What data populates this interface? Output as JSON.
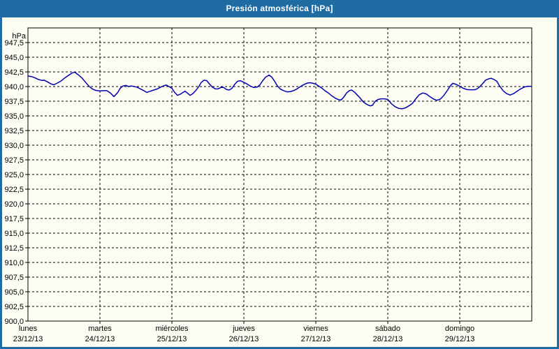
{
  "title": "Presión atmosférica [hPa]",
  "colors": {
    "chrome": "#1e6ca3",
    "title_text": "#ffffff",
    "panel_bg": "#fdfdf4",
    "grid": "#000000",
    "axis_text": "#000000",
    "line": "#0000b4"
  },
  "chart_data": {
    "type": "line",
    "title": "Presión atmosférica [hPa]",
    "ylabel": "hPa",
    "ylim": [
      900,
      950
    ],
    "yticks": {
      "start": 900,
      "end": 947.5,
      "step": 2.5,
      "decimal_separator": ","
    },
    "grid": "dashed",
    "legend": "none",
    "x_range_days": [
      0,
      7
    ],
    "x_axis_days": [
      {
        "name": "lunes",
        "date": "23/12/13"
      },
      {
        "name": "martes",
        "date": "24/12/13"
      },
      {
        "name": "miércoles",
        "date": "25/12/13"
      },
      {
        "name": "jueves",
        "date": "26/12/13"
      },
      {
        "name": "viernes",
        "date": "27/12/13"
      },
      {
        "name": "sábado",
        "date": "28/12/13"
      },
      {
        "name": "domingo",
        "date": "29/12/13"
      }
    ],
    "series": [
      {
        "name": "Presión atmosférica",
        "unit": "hPa",
        "color": "#0000b4",
        "points": [
          [
            0.0,
            941.8
          ],
          [
            0.049,
            941.7
          ],
          [
            0.097,
            941.5
          ],
          [
            0.146,
            941.2
          ],
          [
            0.194,
            941.05
          ],
          [
            0.223,
            941.1
          ],
          [
            0.272,
            940.8
          ],
          [
            0.32,
            940.45
          ],
          [
            0.359,
            940.3
          ],
          [
            0.408,
            940.6
          ],
          [
            0.466,
            941.0
          ],
          [
            0.515,
            941.5
          ],
          [
            0.563,
            941.9
          ],
          [
            0.612,
            942.3
          ],
          [
            0.65,
            942.45
          ],
          [
            0.699,
            942.0
          ],
          [
            0.748,
            941.5
          ],
          [
            0.796,
            940.8
          ],
          [
            0.845,
            940.1
          ],
          [
            0.893,
            939.6
          ],
          [
            0.942,
            939.35
          ],
          [
            1.0,
            939.25
          ],
          [
            1.049,
            939.3
          ],
          [
            1.097,
            939.3
          ],
          [
            1.146,
            938.9
          ],
          [
            1.194,
            938.3
          ],
          [
            1.243,
            938.9
          ],
          [
            1.282,
            939.7
          ],
          [
            1.32,
            940.1
          ],
          [
            1.359,
            940.2
          ],
          [
            1.398,
            940.0
          ],
          [
            1.437,
            940.1
          ],
          [
            1.476,
            940.0
          ],
          [
            1.515,
            939.9
          ],
          [
            1.563,
            939.6
          ],
          [
            1.612,
            939.3
          ],
          [
            1.65,
            939.0
          ],
          [
            1.699,
            939.2
          ],
          [
            1.748,
            939.4
          ],
          [
            1.796,
            939.6
          ],
          [
            1.845,
            939.9
          ],
          [
            1.893,
            940.15
          ],
          [
            1.922,
            940.25
          ],
          [
            1.961,
            940.0
          ],
          [
            2.0,
            939.7
          ],
          [
            2.039,
            939.0
          ],
          [
            2.078,
            938.5
          ],
          [
            2.117,
            938.7
          ],
          [
            2.155,
            939.0
          ],
          [
            2.184,
            939.2
          ],
          [
            2.214,
            938.9
          ],
          [
            2.252,
            938.5
          ],
          [
            2.291,
            938.8
          ],
          [
            2.33,
            939.3
          ],
          [
            2.369,
            939.9
          ],
          [
            2.408,
            940.7
          ],
          [
            2.447,
            941.1
          ],
          [
            2.485,
            941.0
          ],
          [
            2.524,
            940.4
          ],
          [
            2.563,
            939.9
          ],
          [
            2.602,
            939.6
          ],
          [
            2.641,
            939.6
          ],
          [
            2.68,
            939.85
          ],
          [
            2.718,
            939.85
          ],
          [
            2.757,
            939.5
          ],
          [
            2.796,
            939.4
          ],
          [
            2.835,
            939.7
          ],
          [
            2.874,
            940.4
          ],
          [
            2.913,
            940.9
          ],
          [
            2.951,
            941.0
          ],
          [
            3.0,
            940.7
          ],
          [
            3.049,
            940.4
          ],
          [
            3.087,
            940.1
          ],
          [
            3.136,
            939.85
          ],
          [
            3.184,
            939.9
          ],
          [
            3.223,
            940.3
          ],
          [
            3.262,
            941.0
          ],
          [
            3.301,
            941.6
          ],
          [
            3.35,
            941.95
          ],
          [
            3.388,
            941.6
          ],
          [
            3.427,
            940.9
          ],
          [
            3.466,
            940.1
          ],
          [
            3.505,
            939.6
          ],
          [
            3.553,
            939.3
          ],
          [
            3.602,
            939.1
          ],
          [
            3.65,
            939.15
          ],
          [
            3.689,
            939.3
          ],
          [
            3.738,
            939.6
          ],
          [
            3.786,
            940.0
          ],
          [
            3.835,
            940.35
          ],
          [
            3.883,
            940.6
          ],
          [
            3.922,
            940.65
          ],
          [
            3.961,
            940.55
          ],
          [
            4.0,
            940.4
          ],
          [
            4.039,
            940.1
          ],
          [
            4.078,
            939.8
          ],
          [
            4.126,
            939.3
          ],
          [
            4.175,
            938.9
          ],
          [
            4.223,
            938.4
          ],
          [
            4.272,
            938.0
          ],
          [
            4.32,
            937.75
          ],
          [
            4.35,
            937.7
          ],
          [
            4.388,
            938.2
          ],
          [
            4.427,
            938.9
          ],
          [
            4.466,
            939.3
          ],
          [
            4.495,
            939.4
          ],
          [
            4.534,
            939.1
          ],
          [
            4.573,
            938.6
          ],
          [
            4.612,
            938.1
          ],
          [
            4.65,
            937.5
          ],
          [
            4.689,
            937.1
          ],
          [
            4.728,
            936.85
          ],
          [
            4.757,
            936.7
          ],
          [
            4.786,
            936.8
          ],
          [
            4.825,
            937.5
          ],
          [
            4.864,
            937.8
          ],
          [
            4.903,
            937.9
          ],
          [
            4.951,
            937.9
          ],
          [
            5.0,
            937.8
          ],
          [
            5.049,
            937.1
          ],
          [
            5.097,
            936.6
          ],
          [
            5.146,
            936.3
          ],
          [
            5.194,
            936.2
          ],
          [
            5.243,
            936.35
          ],
          [
            5.291,
            936.7
          ],
          [
            5.34,
            937.1
          ],
          [
            5.388,
            937.9
          ],
          [
            5.437,
            938.6
          ],
          [
            5.485,
            938.9
          ],
          [
            5.534,
            938.75
          ],
          [
            5.583,
            938.3
          ],
          [
            5.631,
            937.9
          ],
          [
            5.68,
            937.65
          ],
          [
            5.728,
            937.85
          ],
          [
            5.777,
            938.45
          ],
          [
            5.825,
            939.3
          ],
          [
            5.874,
            940.2
          ],
          [
            5.903,
            940.55
          ],
          [
            5.942,
            940.4
          ],
          [
            6.0,
            940.05
          ],
          [
            6.049,
            939.7
          ],
          [
            6.097,
            939.5
          ],
          [
            6.146,
            939.45
          ],
          [
            6.194,
            939.45
          ],
          [
            6.233,
            939.55
          ],
          [
            6.272,
            939.9
          ],
          [
            6.311,
            940.4
          ],
          [
            6.359,
            941.1
          ],
          [
            6.408,
            941.35
          ],
          [
            6.437,
            941.4
          ],
          [
            6.476,
            941.2
          ],
          [
            6.515,
            940.9
          ],
          [
            6.553,
            940.1
          ],
          [
            6.602,
            939.3
          ],
          [
            6.65,
            938.8
          ],
          [
            6.699,
            938.55
          ],
          [
            6.748,
            938.8
          ],
          [
            6.796,
            939.2
          ],
          [
            6.845,
            939.6
          ],
          [
            6.893,
            939.9
          ],
          [
            6.942,
            940.05
          ],
          [
            6.99,
            940.05
          ]
        ]
      }
    ]
  }
}
